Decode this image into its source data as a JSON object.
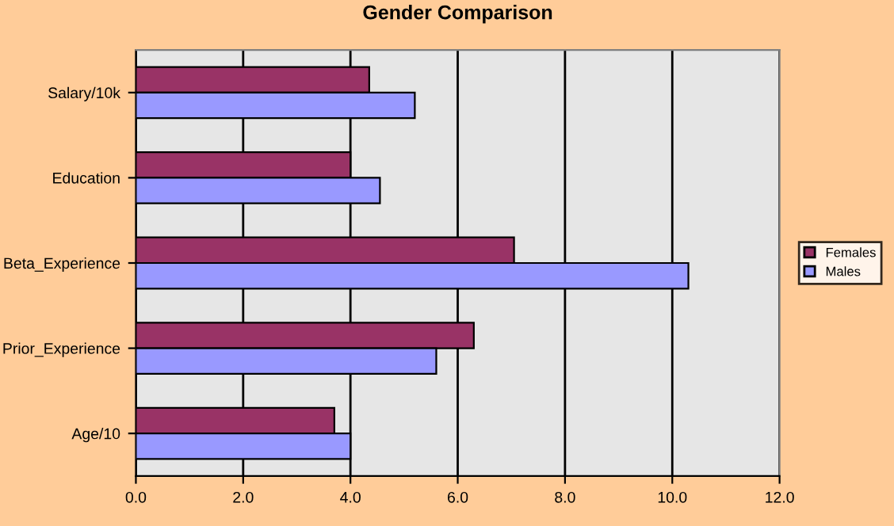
{
  "chart_data": {
    "type": "bar",
    "orientation": "horizontal",
    "title": "Gender Comparison",
    "categories": [
      "Salary/10k",
      "Education",
      "Beta_Experience",
      "Prior_Experience",
      "Age/10"
    ],
    "series": [
      {
        "name": "Females",
        "color": "#993366",
        "values": [
          4.35,
          4.0,
          7.05,
          6.3,
          3.7
        ]
      },
      {
        "name": "Males",
        "color": "#9999ff",
        "values": [
          5.2,
          4.55,
          10.3,
          5.6,
          4.0
        ]
      }
    ],
    "xlim": [
      0,
      12
    ],
    "xticks": [
      {
        "value": 0,
        "label": "0.0"
      },
      {
        "value": 2,
        "label": "2.0"
      },
      {
        "value": 4,
        "label": "4.0"
      },
      {
        "value": 6,
        "label": "6.0"
      },
      {
        "value": 8,
        "label": "8.0"
      },
      {
        "value": 10,
        "label": "10.0"
      },
      {
        "value": 12,
        "label": "12.0"
      }
    ],
    "grid": "x",
    "legend": "right"
  }
}
